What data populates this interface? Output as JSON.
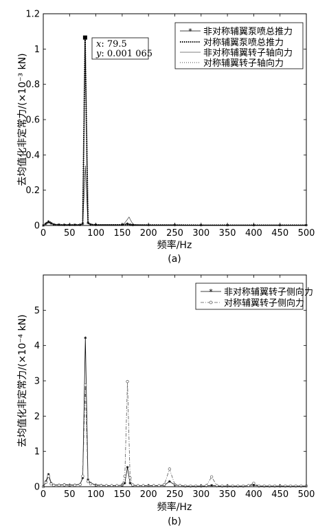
{
  "chart_data": [
    {
      "type": "line",
      "sublabel": "(a)",
      "xlabel": "频率/Hz",
      "ylabel": "去均值化非定常力/(×10⁻³ kN)",
      "xlim": [
        0,
        500
      ],
      "ylim": [
        0,
        1.2
      ],
      "xticks": [
        "0",
        "50",
        "100",
        "150",
        "200",
        "250",
        "300",
        "350",
        "400",
        "450",
        "500"
      ],
      "yticks": [
        "0",
        "0.2",
        "0.4",
        "0.6",
        "0.8",
        "1",
        "1.2"
      ],
      "grid": false,
      "legend_position": "top-right",
      "annotation": {
        "x_label": "x",
        "x_value": ": 79.5",
        "y_label": "y",
        "y_value": ": 0.001 065",
        "x": 79.5,
        "y": 1.065
      },
      "series": [
        {
          "name": "非对称辅翼泵喷总推力",
          "style": "star",
          "x": [
            0,
            5,
            10,
            15,
            20,
            30,
            40,
            50,
            60,
            70,
            75,
            79.5,
            85,
            90,
            100,
            150,
            160,
            165,
            170,
            200,
            250,
            300,
            350,
            400,
            450,
            500
          ],
          "y": [
            0,
            0.01,
            0.02,
            0.012,
            0.006,
            0.005,
            0.004,
            0.004,
            0.004,
            0.004,
            0.01,
            1.065,
            0.015,
            0.006,
            0.004,
            0.005,
            0.01,
            0.005,
            0.003,
            0.003,
            0.003,
            0.002,
            0.002,
            0.002,
            0.002,
            0.002
          ]
        },
        {
          "name": "对称辅翼泵喷总推力",
          "style": "dotted-bold",
          "x": [
            0,
            5,
            10,
            15,
            20,
            30,
            40,
            50,
            60,
            70,
            75,
            79.5,
            85,
            90,
            100,
            150,
            160,
            170,
            200,
            250,
            300,
            350,
            400,
            450,
            500
          ],
          "y": [
            0,
            0.012,
            0.025,
            0.015,
            0.006,
            0.004,
            0.004,
            0.004,
            0.004,
            0.004,
            0.01,
            1.06,
            0.015,
            0.006,
            0.004,
            0.004,
            0.004,
            0.004,
            0.003,
            0.003,
            0.002,
            0.002,
            0.002,
            0.002,
            0.002
          ]
        },
        {
          "name": "非对称辅翼转子轴向力",
          "style": "solid-thin",
          "x": [
            0,
            5,
            10,
            15,
            20,
            30,
            40,
            50,
            60,
            70,
            75,
            80,
            85,
            90,
            100,
            150,
            155,
            160,
            163,
            166,
            170,
            175,
            200,
            250,
            300,
            350,
            400,
            450,
            500
          ],
          "y": [
            0,
            0.008,
            0.015,
            0.01,
            0.005,
            0.004,
            0.003,
            0.003,
            0.003,
            0.003,
            0.008,
            0.33,
            0.01,
            0.005,
            0.003,
            0.004,
            0.015,
            0.035,
            0.048,
            0.03,
            0.01,
            0.004,
            0.003,
            0.003,
            0.002,
            0.002,
            0.002,
            0.002,
            0.002
          ]
        },
        {
          "name": "对称辅翼转子轴向力",
          "style": "dotted-thin",
          "x": [
            0,
            5,
            10,
            15,
            20,
            30,
            40,
            50,
            60,
            70,
            75,
            80,
            85,
            90,
            100,
            150,
            160,
            170,
            200,
            250,
            300,
            350,
            400,
            450,
            500
          ],
          "y": [
            0,
            0.01,
            0.02,
            0.012,
            0.005,
            0.004,
            0.003,
            0.003,
            0.003,
            0.003,
            0.008,
            0.34,
            0.01,
            0.005,
            0.003,
            0.003,
            0.004,
            0.003,
            0.003,
            0.003,
            0.002,
            0.002,
            0.002,
            0.002,
            0.002
          ]
        }
      ]
    },
    {
      "type": "line",
      "sublabel": "(b)",
      "xlabel": "频率/Hz",
      "ylabel": "去均值化非定常力/(×10⁻⁴ kN)",
      "xlim": [
        0,
        500
      ],
      "ylim": [
        0,
        6
      ],
      "xticks": [
        "0",
        "50",
        "100",
        "150",
        "200",
        "250",
        "300",
        "350",
        "400",
        "450",
        "500"
      ],
      "yticks": [
        "0",
        "1",
        "2",
        "3",
        "4",
        "5"
      ],
      "grid": false,
      "legend_position": "top-right",
      "series": [
        {
          "name": "非对称辅翼转子侧向力",
          "style": "solid-star",
          "x": [
            0,
            5,
            10,
            15,
            20,
            30,
            40,
            50,
            60,
            70,
            75,
            80,
            85,
            90,
            100,
            110,
            120,
            130,
            140,
            150,
            155,
            160,
            165,
            170,
            180,
            190,
            200,
            210,
            220,
            230,
            240,
            250,
            260,
            270,
            280,
            290,
            300,
            310,
            320,
            330,
            340,
            350,
            360,
            370,
            380,
            390,
            400,
            410,
            420,
            430,
            440,
            450,
            460,
            470,
            480,
            490,
            500
          ],
          "y": [
            0,
            0.15,
            0.35,
            0.1,
            0.05,
            0.05,
            0.06,
            0.05,
            0.05,
            0.07,
            0.25,
            4.22,
            0.2,
            0.1,
            0.05,
            0.04,
            0.03,
            0.03,
            0.03,
            0.04,
            0.1,
            0.55,
            0.1,
            0.04,
            0.03,
            0.03,
            0.03,
            0.03,
            0.03,
            0.04,
            0.15,
            0.05,
            0.03,
            0.02,
            0.02,
            0.02,
            0.02,
            0.02,
            0.04,
            0.02,
            0.02,
            0.02,
            0.02,
            0.02,
            0.02,
            0.03,
            0.05,
            0.02,
            0.02,
            0.02,
            0.02,
            0.02,
            0.02,
            0.02,
            0.02,
            0.02,
            0.02
          ]
        },
        {
          "name": "对称辅翼转子侧向力",
          "style": "dashdot-circle",
          "x": [
            0,
            5,
            10,
            15,
            20,
            30,
            40,
            50,
            60,
            70,
            75,
            80,
            85,
            90,
            100,
            110,
            120,
            130,
            140,
            150,
            155,
            160,
            165,
            170,
            180,
            190,
            200,
            210,
            220,
            230,
            240,
            250,
            260,
            270,
            280,
            290,
            300,
            310,
            320,
            330,
            340,
            350,
            360,
            370,
            380,
            390,
            400,
            410,
            420,
            430,
            440,
            450,
            460,
            470,
            480,
            490,
            500
          ],
          "y": [
            0,
            0.12,
            0.3,
            0.08,
            0.04,
            0.04,
            0.05,
            0.04,
            0.04,
            0.06,
            0.3,
            2.88,
            0.15,
            0.08,
            0.04,
            0.03,
            0.03,
            0.03,
            0.03,
            0.05,
            0.3,
            2.98,
            0.25,
            0.05,
            0.03,
            0.03,
            0.03,
            0.03,
            0.03,
            0.06,
            0.5,
            0.06,
            0.03,
            0.02,
            0.02,
            0.02,
            0.02,
            0.03,
            0.28,
            0.03,
            0.02,
            0.02,
            0.02,
            0.02,
            0.02,
            0.03,
            0.1,
            0.02,
            0.02,
            0.02,
            0.02,
            0.02,
            0.02,
            0.02,
            0.02,
            0.02,
            0.02
          ]
        }
      ]
    }
  ]
}
